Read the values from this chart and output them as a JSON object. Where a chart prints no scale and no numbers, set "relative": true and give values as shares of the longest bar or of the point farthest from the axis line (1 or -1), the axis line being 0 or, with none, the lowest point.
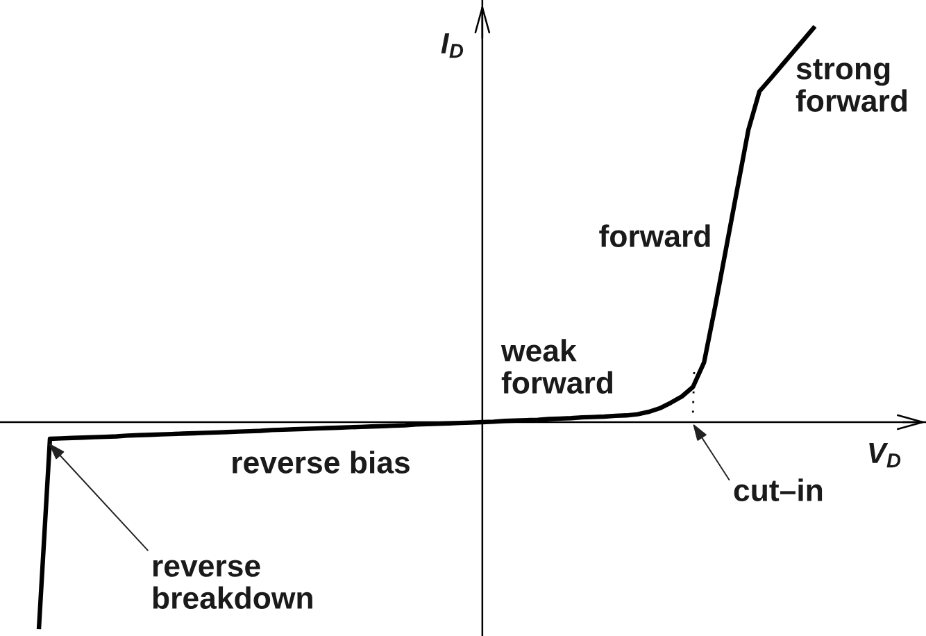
{
  "chart_data": {
    "type": "line",
    "relative": true,
    "xlabel": "V$_{D}$",
    "ylabel": "I$_{D}$",
    "categories": [
      null,
      null,
      null,
      null,
      null,
      null,
      null,
      null,
      null,
      null,
      null,
      null,
      null,
      null,
      null,
      null,
      null,
      null,
      null,
      null,
      null,
      null,
      null,
      null,
      null,
      null,
      null,
      null,
      null,
      null,
      null,
      null,
      null,
      null,
      null,
      null,
      null,
      null,
      null,
      null,
      null,
      null,
      null,
      null,
      null,
      null,
      null,
      null,
      null,
      null,
      null,
      null,
      null,
      null,
      null,
      null,
      null,
      null,
      null,
      null,
      null,
      null,
      null,
      null,
      null,
      null,
      null,
      null,
      null,
      null,
      null
    ],
    "series": [
      {
        "color": "#000000",
        "values": [
          -0.523,
          -0.042,
          -0.041,
          -0.04,
          -0.039,
          -0.038,
          -0.037,
          -0.036,
          -0.034,
          -0.033,
          -0.032,
          -0.031,
          -0.03,
          -0.029,
          -0.028,
          -0.027,
          -0.026,
          -0.025,
          -0.024,
          -0.023,
          -0.022,
          -0.02,
          -0.019,
          -0.018,
          -0.017,
          -0.016,
          -0.015,
          -0.014,
          -0.013,
          -0.012,
          -0.011,
          -0.01,
          -0.009,
          -0.008,
          -0.006,
          -0.005,
          -0.004,
          -0.003,
          -0.002,
          -0.001,
          0,
          0.001,
          0.003,
          0.004,
          0.005,
          0.006,
          0.008,
          0.009,
          0.01,
          0.012,
          0.013,
          0.014,
          0.016,
          0.017,
          0.02,
          0.026,
          0.035,
          0.049,
          0.065,
          0.089,
          0.151,
          0.292,
          0.441,
          0.59,
          0.739,
          0.836,
          0.868,
          0.901,
          0.934,
          0.967,
          1.0
        ]
      }
    ],
    "annotations": [
      "strong\nforward",
      "forward",
      "weak\nforward",
      "reverse bias",
      "reverse\nbreakdown",
      "cut–in"
    ]
  }
}
